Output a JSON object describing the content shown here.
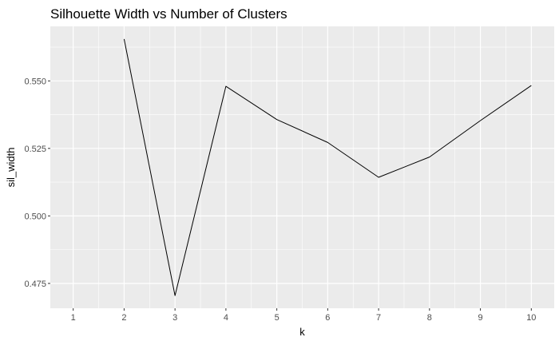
{
  "chart_data": {
    "type": "line",
    "title": "Silhouette Width vs Number of Clusters",
    "xlabel": "k",
    "ylabel": "sil_width",
    "x": [
      1,
      2,
      3,
      4,
      5,
      6,
      7,
      8,
      9,
      10
    ],
    "x_tick_labels": [
      "1",
      "2",
      "3",
      "4",
      "5",
      "6",
      "7",
      "8",
      "9",
      "10"
    ],
    "series": [
      {
        "x": [
          2,
          3,
          4,
          5,
          6,
          7,
          8,
          9,
          10
        ],
        "values": [
          0.5655,
          0.4705,
          0.548,
          0.5357,
          0.5272,
          0.5143,
          0.5218,
          0.5353,
          0.5483
        ],
        "color": "#000000"
      }
    ],
    "y_ticks": [
      0.475,
      0.5,
      0.525,
      0.55
    ],
    "y_tick_labels": [
      "0.475",
      "0.500",
      "0.525",
      "0.550"
    ],
    "xlim": [
      0.55,
      10.45
    ],
    "ylim": [
      0.4658,
      0.5702
    ],
    "grid": true,
    "panel_color": "#ebebeb",
    "grid_color": "#ffffff"
  }
}
